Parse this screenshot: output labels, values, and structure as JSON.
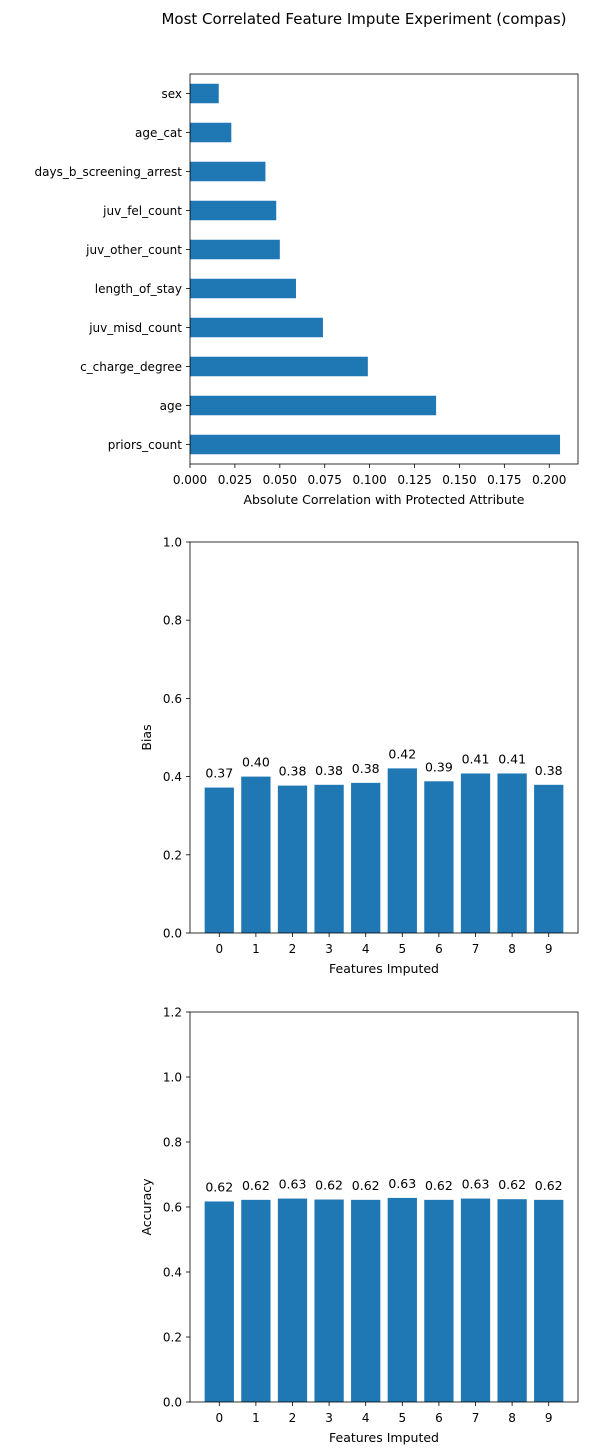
{
  "title": "Most Correlated Feature Impute Experiment (compas)",
  "colors": {
    "bar": "#1f77b4"
  },
  "chart_data": [
    {
      "type": "bar",
      "orientation": "horizontal",
      "categories": [
        "priors_count",
        "age",
        "c_charge_degree",
        "juv_misd_count",
        "length_of_stay",
        "juv_other_count",
        "juv_fel_count",
        "days_b_screening_arrest",
        "age_cat",
        "sex"
      ],
      "values": [
        0.206,
        0.137,
        0.099,
        0.074,
        0.059,
        0.05,
        0.048,
        0.042,
        0.023,
        0.016
      ],
      "xlabel": "Absolute Correlation with Protected Attribute",
      "ylabel": "",
      "xlim": [
        0.0,
        0.216
      ],
      "xticks": [
        "0.000",
        "0.025",
        "0.050",
        "0.075",
        "0.100",
        "0.125",
        "0.150",
        "0.175",
        "0.200"
      ],
      "grid": false
    },
    {
      "type": "bar",
      "categories": [
        "0",
        "1",
        "2",
        "3",
        "4",
        "5",
        "6",
        "7",
        "8",
        "9"
      ],
      "values": [
        0.372,
        0.4,
        0.377,
        0.379,
        0.384,
        0.421,
        0.388,
        0.408,
        0.408,
        0.379
      ],
      "data_labels": [
        "0.37",
        "0.40",
        "0.38",
        "0.38",
        "0.38",
        "0.42",
        "0.39",
        "0.41",
        "0.41",
        "0.38"
      ],
      "xlabel": "Features Imputed",
      "ylabel": "Bias",
      "ylim": [
        0,
        1.0
      ],
      "yticks": [
        "0.0",
        "0.2",
        "0.4",
        "0.6",
        "0.8",
        "1.0"
      ],
      "grid": false
    },
    {
      "type": "bar",
      "categories": [
        "0",
        "1",
        "2",
        "3",
        "4",
        "5",
        "6",
        "7",
        "8",
        "9"
      ],
      "values": [
        0.617,
        0.622,
        0.626,
        0.623,
        0.622,
        0.628,
        0.622,
        0.626,
        0.624,
        0.622
      ],
      "data_labels": [
        "0.62",
        "0.62",
        "0.63",
        "0.62",
        "0.62",
        "0.63",
        "0.62",
        "0.63",
        "0.62",
        "0.62"
      ],
      "xlabel": "Features Imputed",
      "ylabel": "Accuracy",
      "ylim": [
        0,
        1.2
      ],
      "yticks": [
        "0.0",
        "0.2",
        "0.4",
        "0.6",
        "0.8",
        "1.0",
        "1.2"
      ],
      "grid": false
    }
  ]
}
